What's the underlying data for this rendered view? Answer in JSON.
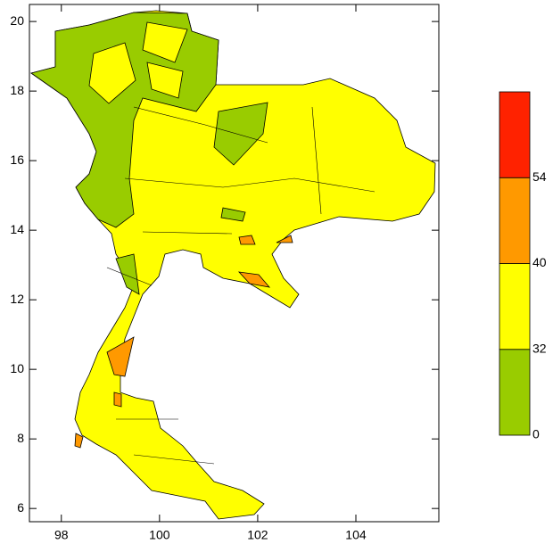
{
  "chart_data": {
    "type": "map",
    "xlim": [
      97.35,
      105.69
    ],
    "xticks": [
      98,
      100,
      102,
      104
    ],
    "ylim": [
      5.62,
      20.49
    ],
    "yticks": [
      6,
      8,
      10,
      12,
      14,
      16,
      18,
      20
    ],
    "colorbar": {
      "levels": [
        0,
        32,
        40,
        54
      ],
      "colors": [
        "#99cc00",
        "#ffff00",
        "#ff9900",
        "#ff2200"
      ]
    }
  }
}
